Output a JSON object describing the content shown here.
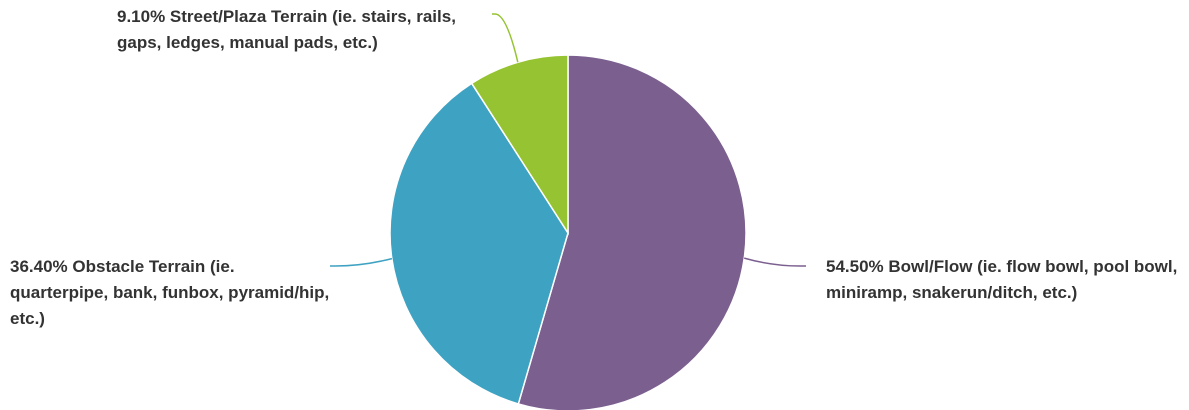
{
  "chart_data": {
    "type": "pie",
    "title": "",
    "legend": "none",
    "slices": [
      {
        "label": "Bowl/Flow (ie. flow bowl, pool bowl, miniramp, snakerun/ditch, etc.)",
        "value": 54.5,
        "display": "54.50% Bowl/Flow (ie. flow bowl, pool bowl, miniramp, snakerun/ditch, etc.)",
        "color": "#7B5F8F"
      },
      {
        "label": "Obstacle Terrain (ie. quarterpipe, bank, funbox, pyramid/hip, etc.)",
        "value": 36.4,
        "display": "36.40% Obstacle Terrain (ie. quarterpipe, bank, funbox, pyramid/hip, etc.)",
        "color": "#3EA2C2"
      },
      {
        "label": "Street/Plaza Terrain (ie. stairs, rails, gaps, ledges, manual pads, etc.)",
        "value": 9.1,
        "display": "9.10% Street/Plaza Terrain (ie. stairs, rails, gaps, ledges, manual pads, etc.)",
        "color": "#95C331"
      }
    ]
  }
}
